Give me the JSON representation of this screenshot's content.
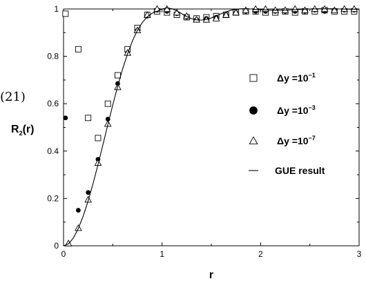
{
  "chart_data": {
    "type": "scatter",
    "xlabel": "r",
    "ylabel": "R₂(r)",
    "xlim": [
      0,
      3
    ],
    "ylim": [
      0,
      1
    ],
    "xticks": [
      "0",
      "1",
      "2",
      "3"
    ],
    "yticks": [
      "0",
      "0.2",
      "0.4",
      "0.6",
      "0.8",
      "1"
    ],
    "grid": false,
    "legend_position": "right",
    "side_fragment": "(21)",
    "series": [
      {
        "name": "Δy =10⁻¹",
        "name_base": "Δy =10",
        "name_exp": "−1",
        "marker": "square",
        "x": [
          0.02,
          0.15,
          0.25,
          0.35,
          0.45,
          0.55,
          0.65,
          0.75,
          0.85,
          0.95,
          1.05,
          1.15,
          1.25,
          1.35,
          1.45,
          1.55,
          1.65,
          1.75,
          1.85,
          1.95,
          2.05,
          2.15,
          2.25,
          2.35,
          2.45,
          2.55,
          2.65,
          2.75,
          2.85,
          2.95
        ],
        "y": [
          0.98,
          0.83,
          0.54,
          0.455,
          0.6,
          0.72,
          0.83,
          0.92,
          0.975,
          0.99,
          0.985,
          0.975,
          0.965,
          0.96,
          0.965,
          0.97,
          0.975,
          0.985,
          0.99,
          0.99,
          0.985,
          0.985,
          0.99,
          0.985,
          0.99,
          0.99,
          0.995,
          0.99,
          0.99,
          0.99
        ]
      },
      {
        "name": "Δy =10⁻³",
        "name_base": "Δy =10",
        "name_exp": "−3",
        "marker": "circle",
        "x": [
          0.02,
          0.15,
          0.25,
          0.35,
          0.45,
          0.55,
          0.65,
          0.75,
          0.85,
          0.95,
          1.05,
          1.15,
          1.25,
          1.35,
          1.45,
          1.55,
          1.65,
          1.75,
          1.85,
          1.95,
          2.05,
          2.15,
          2.25,
          2.35,
          2.45,
          2.55,
          2.65,
          2.75,
          2.85,
          2.95
        ],
        "y": [
          0.54,
          0.15,
          0.225,
          0.365,
          0.535,
          0.685,
          0.815,
          0.91,
          0.97,
          0.995,
          0.99,
          0.98,
          0.965,
          0.955,
          0.96,
          0.965,
          0.975,
          0.985,
          0.99,
          0.99,
          0.99,
          0.99,
          0.99,
          0.99,
          0.99,
          0.995,
          0.99,
          0.995,
          0.995,
          0.995
        ]
      },
      {
        "name": "Δy =10⁻⁷",
        "name_base": "Δy =10",
        "name_exp": "−7",
        "marker": "triangle",
        "x": [
          0.05,
          0.15,
          0.25,
          0.35,
          0.45,
          0.55,
          0.65,
          0.75,
          0.85,
          0.95,
          1.05,
          1.15,
          1.25,
          1.35,
          1.45,
          1.55,
          1.65,
          1.75,
          1.85,
          1.95,
          2.05,
          2.15,
          2.25,
          2.35,
          2.45,
          2.55,
          2.65,
          2.75,
          2.85,
          2.95
        ],
        "y": [
          0.01,
          0.075,
          0.195,
          0.35,
          0.515,
          0.67,
          0.815,
          0.91,
          0.975,
          1.0,
          1.0,
          0.985,
          0.97,
          0.955,
          0.955,
          0.96,
          0.975,
          0.985,
          0.995,
          1.0,
          1.0,
          0.995,
          0.995,
          1.0,
          0.995,
          1.0,
          1.0,
          0.995,
          1.0,
          1.0
        ]
      },
      {
        "name": "GUE result",
        "name_base": "GUE result",
        "name_exp": "",
        "marker": "line",
        "x": [
          0.0,
          0.05,
          0.1,
          0.15,
          0.2,
          0.25,
          0.3,
          0.35,
          0.4,
          0.45,
          0.5,
          0.55,
          0.6,
          0.65,
          0.7,
          0.75,
          0.8,
          0.85,
          0.9,
          0.95,
          1.0,
          1.05,
          1.1,
          1.15,
          1.2,
          1.25,
          1.3,
          1.35,
          1.4,
          1.45,
          1.5,
          1.55,
          1.6,
          1.65,
          1.7,
          1.75,
          1.8,
          1.85,
          1.9,
          1.95,
          2.0,
          2.1,
          2.2,
          2.3,
          2.4,
          2.5,
          2.6,
          2.7,
          2.8,
          2.9,
          3.0
        ],
        "y": [
          0.0,
          0.008,
          0.033,
          0.073,
          0.126,
          0.19,
          0.263,
          0.343,
          0.427,
          0.512,
          0.595,
          0.674,
          0.747,
          0.811,
          0.866,
          0.91,
          0.943,
          0.967,
          0.982,
          0.99,
          1.0,
          1.005,
          1.001,
          0.992,
          0.98,
          0.968,
          0.959,
          0.954,
          0.953,
          0.956,
          0.962,
          0.971,
          0.98,
          0.988,
          0.995,
          0.999,
          1.001,
          1.001,
          1.0,
          0.998,
          0.997,
          0.995,
          0.995,
          0.996,
          0.998,
          1.0,
          1.001,
          1.001,
          1.0,
          0.999,
          0.999
        ]
      }
    ]
  }
}
